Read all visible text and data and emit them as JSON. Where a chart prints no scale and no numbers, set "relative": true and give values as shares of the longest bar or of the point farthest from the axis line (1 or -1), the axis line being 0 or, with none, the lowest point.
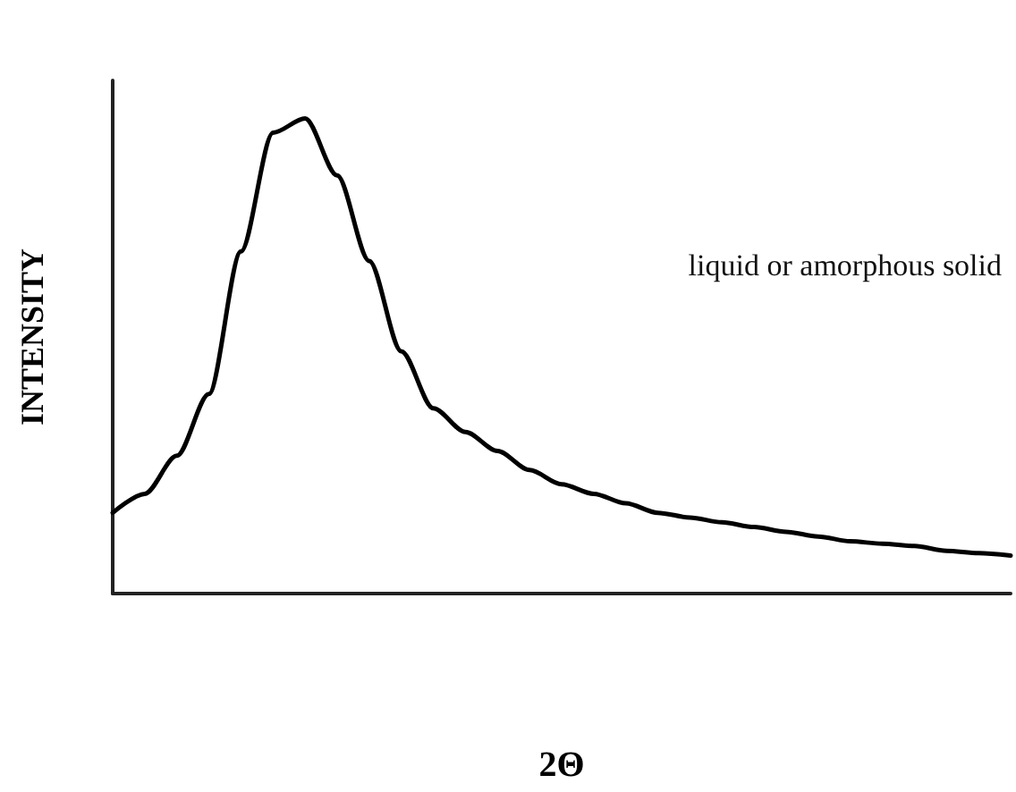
{
  "chart_data": {
    "type": "line",
    "relative": true,
    "xlabel": "2Θ",
    "ylabel": "INTENSITY",
    "annotations": [
      "liquid or amorphous solid"
    ],
    "categories": [
      null,
      null,
      null,
      null,
      null,
      null,
      null,
      null,
      null,
      null,
      null,
      null,
      null,
      null,
      null,
      null,
      null,
      null,
      null,
      null,
      null,
      null,
      null,
      null,
      null,
      null,
      null,
      null,
      null
    ],
    "series": [
      {
        "color": "#000000",
        "values": [
          0.17,
          0.21,
          0.29,
          0.42,
          0.72,
          0.97,
          1,
          0.88,
          0.7,
          0.51,
          0.39,
          0.34,
          0.3,
          0.26,
          0.23,
          0.21,
          0.19,
          0.17,
          0.16,
          0.15,
          0.14,
          0.13,
          0.12,
          0.11,
          0.105,
          0.1,
          0.09,
          0.085,
          0.08
        ]
      }
    ],
    "marker": "none",
    "line_style": "solid"
  }
}
